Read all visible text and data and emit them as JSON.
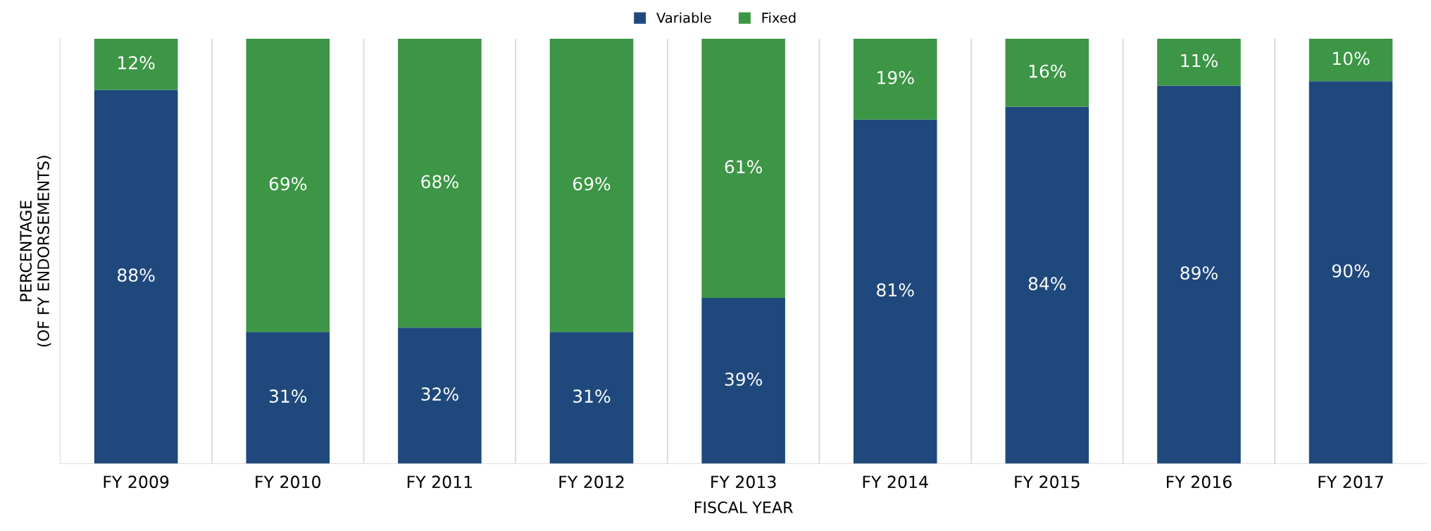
{
  "chart_data": {
    "type": "bar",
    "stacked": true,
    "xlabel": "FISCAL YEAR",
    "ylabel": "PERCENTAGE\n(OF FY ENDORSEMENTS)",
    "categories": [
      "FY 2009",
      "FY 2010",
      "FY 2011",
      "FY 2012",
      "FY 2013",
      "FY 2014",
      "FY 2015",
      "FY 2016",
      "FY 2017"
    ],
    "series": [
      {
        "name": "Variable",
        "color": "#1f497d",
        "values": [
          88,
          31,
          32,
          31,
          39,
          81,
          84,
          89,
          90
        ],
        "value_labels": [
          "88%",
          "31%",
          "32%",
          "31%",
          "39%",
          "81%",
          "84%",
          "89%",
          "90%"
        ]
      },
      {
        "name": "Fixed",
        "color": "#3c9645",
        "values": [
          12,
          69,
          68,
          69,
          61,
          19,
          16,
          11,
          10
        ],
        "value_labels": [
          "12%",
          "69%",
          "68%",
          "69%",
          "61%",
          "19%",
          "16%",
          "11%",
          "10%"
        ]
      }
    ],
    "legend": "top",
    "grid": "x",
    "tick_labels": "x"
  }
}
